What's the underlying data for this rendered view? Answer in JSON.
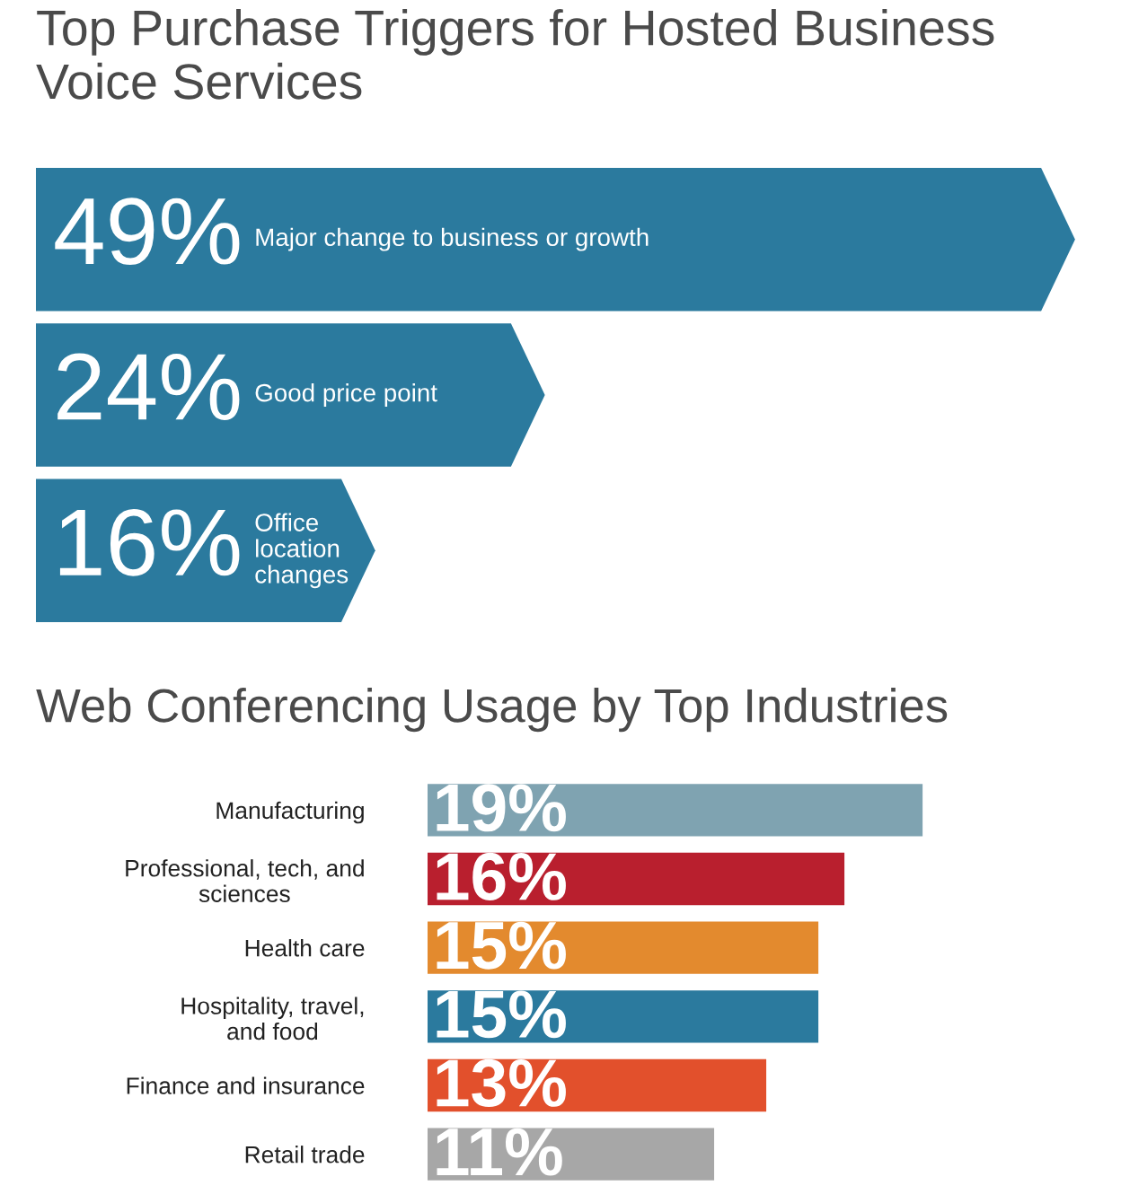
{
  "chart_data": [
    {
      "type": "bar",
      "orientation": "horizontal",
      "title": "Top Purchase Triggers for Hosted Business Voice Services",
      "categories": [
        "Major change to business or growth",
        "Good price point",
        "Office\nlocation\nchanges"
      ],
      "values": [
        49,
        24,
        16
      ],
      "value_labels": [
        "49%",
        "24%",
        "16%"
      ],
      "color": "#2b7a9e",
      "tick_labels": false,
      "grid": false,
      "legend": false
    },
    {
      "type": "bar",
      "orientation": "horizontal",
      "title": "Web Conferencing Usage by Top Industries",
      "categories": [
        "Manufacturing",
        "Professional, tech, and\nsciences",
        "Health care",
        "Hospitality, travel,\nand food",
        "Finance and insurance",
        "Retail trade"
      ],
      "values": [
        19,
        16,
        15,
        15,
        13,
        11
      ],
      "value_labels": [
        "19%",
        "16%",
        "15%",
        "15%",
        "13%",
        "11%"
      ],
      "colors": [
        "#7fa3b1",
        "#b91f2e",
        "#e38a2e",
        "#2b7a9e",
        "#e2502c",
        "#a7a7a7"
      ],
      "tick_labels": "y",
      "grid": false,
      "legend": false
    }
  ]
}
